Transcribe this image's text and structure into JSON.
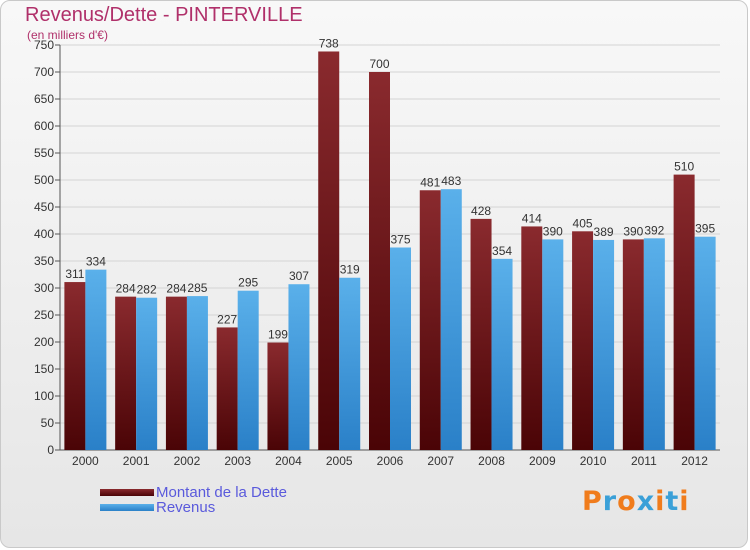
{
  "title": "Revenus/Dette - PINTERVILLE",
  "subtitle": "(en milliers d'€)",
  "logo": {
    "text": "Proxiti",
    "colors": [
      "#f07c1c",
      "#3aa0d8",
      "#f07c1c",
      "#3aa0d8",
      "#f07c1c",
      "#3aa0d8",
      "#f07c1c"
    ]
  },
  "legend": [
    {
      "label": "Montant de la Dette",
      "color": "#6a0f12"
    },
    {
      "label": "Revenus",
      "color": "#3e98dc"
    }
  ],
  "chart_data": {
    "type": "bar",
    "title": "Revenus/Dette - PINTERVILLE",
    "subtitle": "(en milliers d'€)",
    "xlabel": "",
    "ylabel": "",
    "ylim": [
      0,
      750
    ],
    "yticks": [
      0,
      50,
      100,
      150,
      200,
      250,
      300,
      350,
      400,
      450,
      500,
      550,
      600,
      650,
      700,
      750
    ],
    "grid": true,
    "categories": [
      "2000",
      "2001",
      "2002",
      "2003",
      "2004",
      "2005",
      "2006",
      "2007",
      "2008",
      "2009",
      "2010",
      "2011",
      "2012"
    ],
    "series": [
      {
        "name": "Montant de la Dette",
        "color": "#7a1a1e",
        "values": [
          311,
          284,
          284,
          227,
          199,
          738,
          700,
          481,
          428,
          414,
          405,
          390,
          510
        ]
      },
      {
        "name": "Revenus",
        "color": "#3e98dc",
        "values": [
          334,
          282,
          285,
          295,
          307,
          319,
          375,
          483,
          354,
          390,
          389,
          392,
          395
        ]
      }
    ]
  }
}
